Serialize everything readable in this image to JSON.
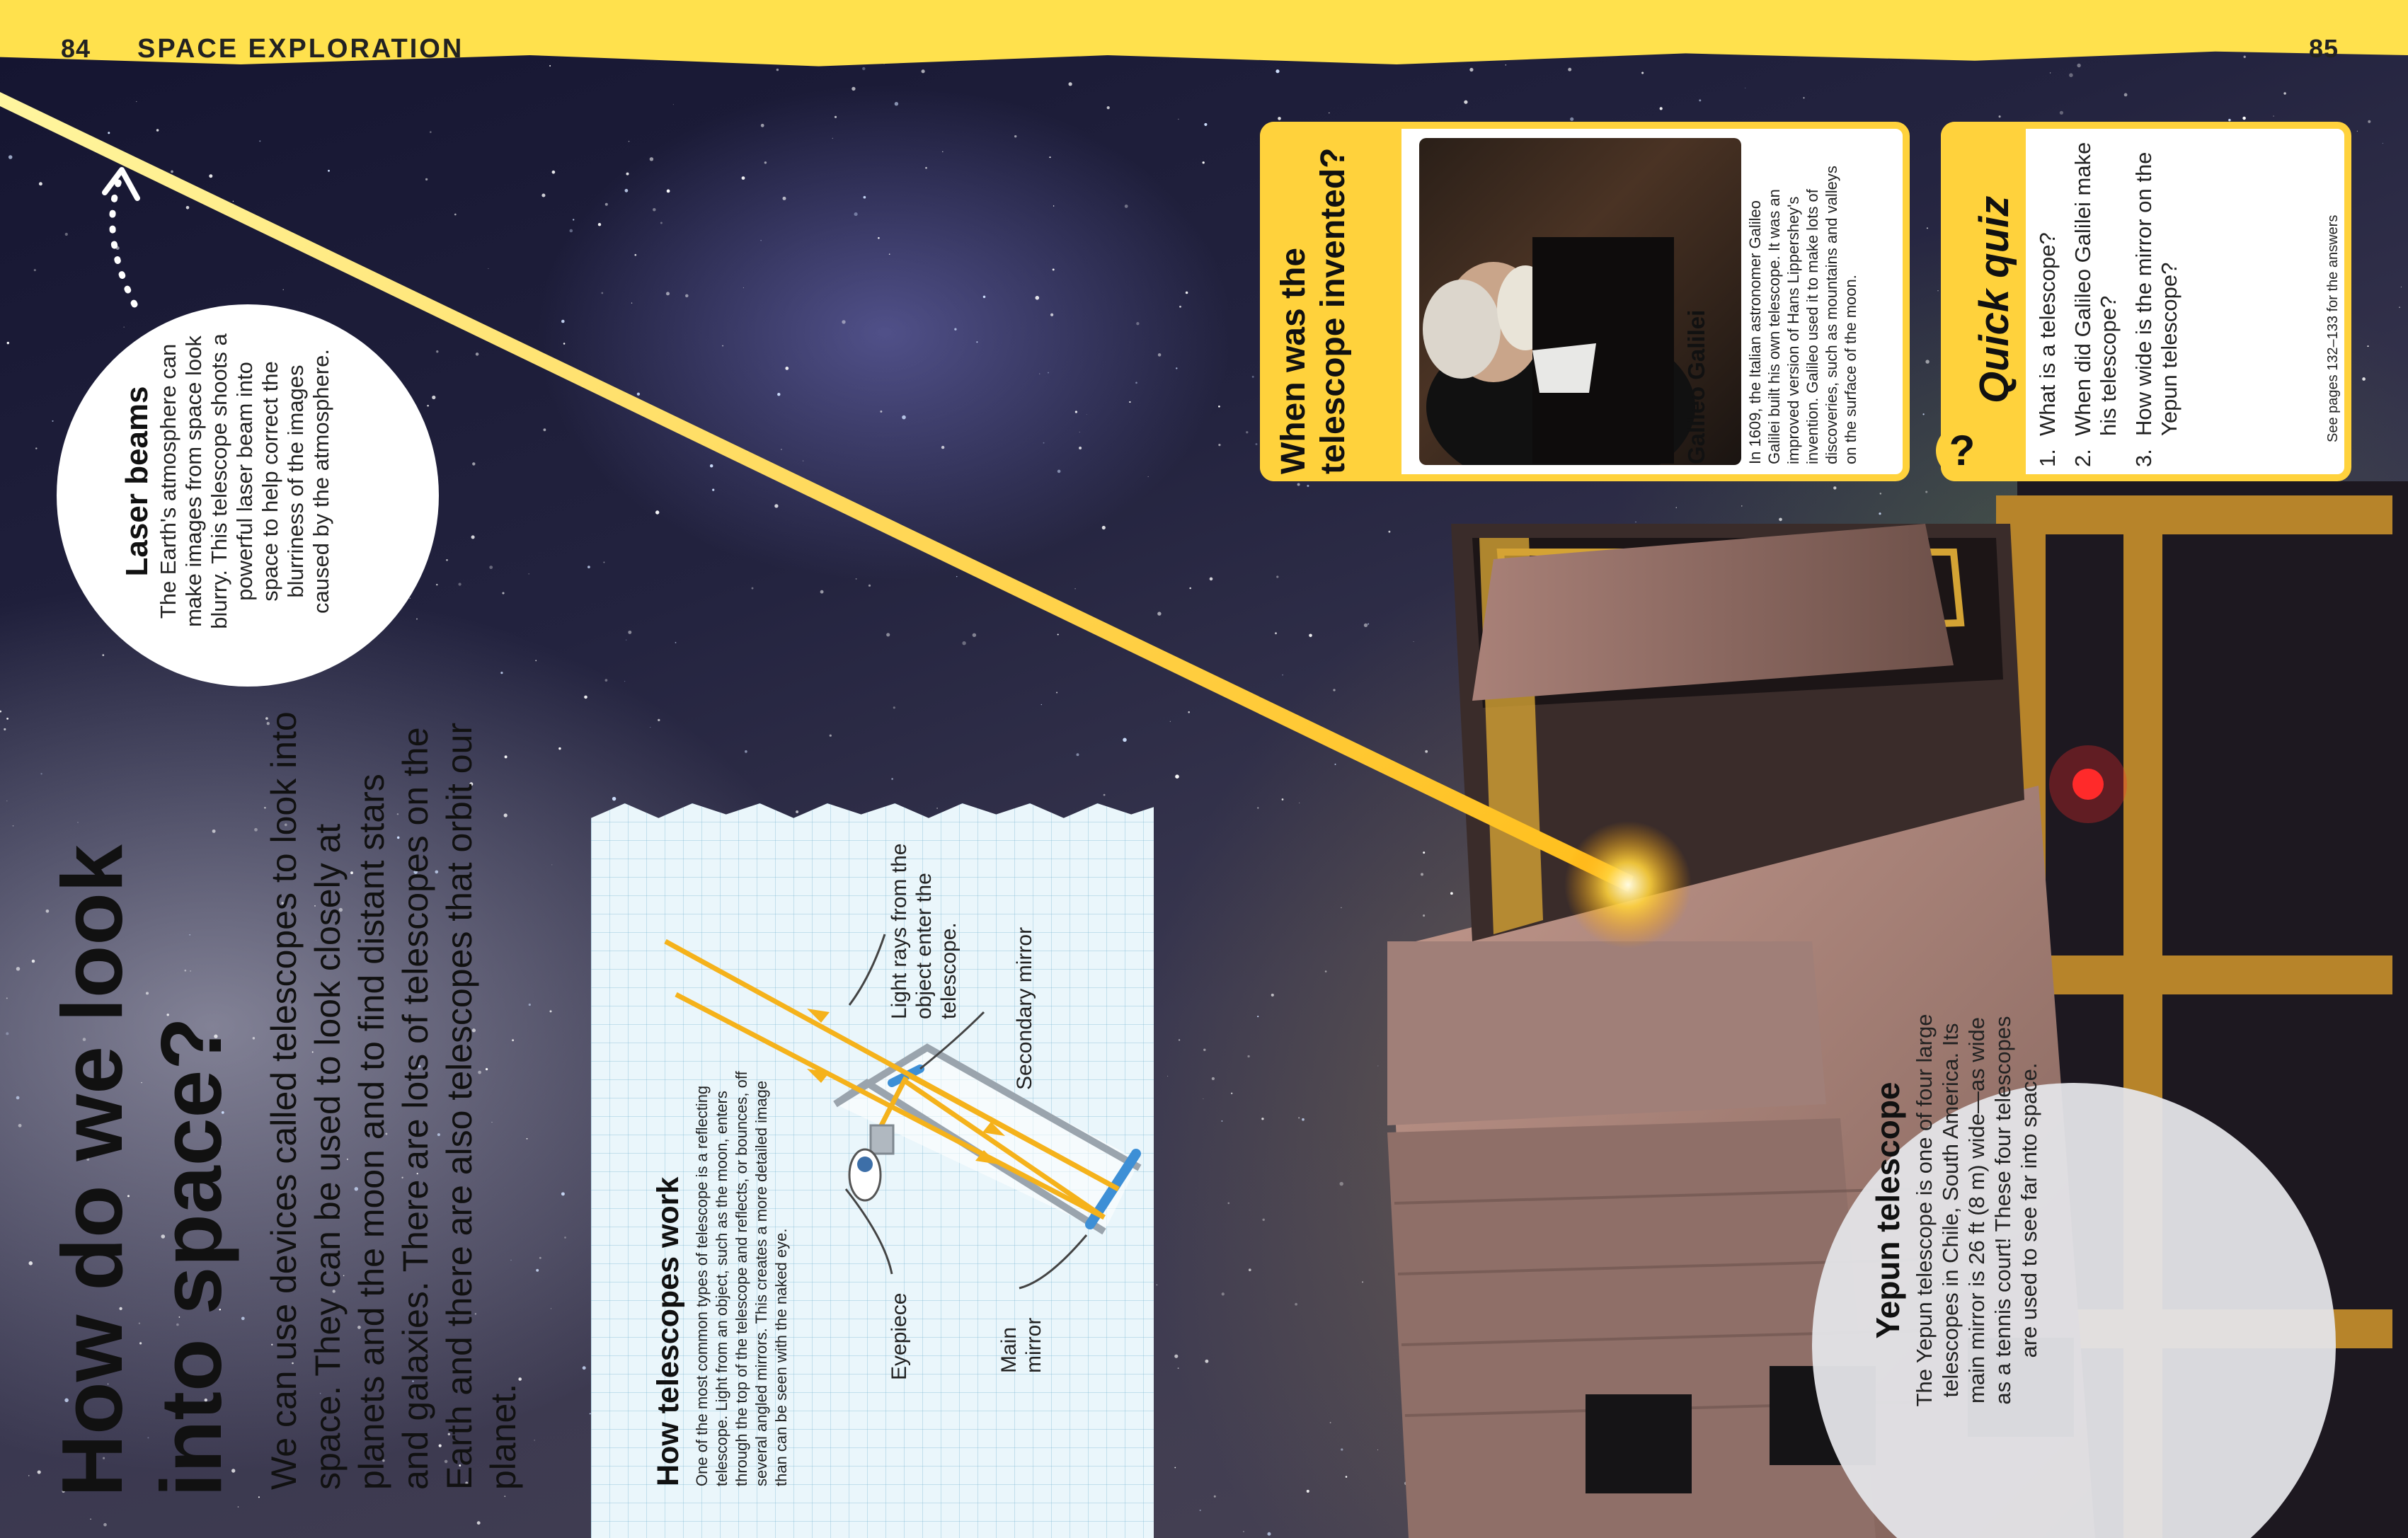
{
  "header": {
    "left_page_number": "84",
    "section_title": "SPACE EXPLORATION",
    "right_page_number": "85"
  },
  "main": {
    "title": "How do we look into space?",
    "intro": "We can use devices called telescopes to look into space. They can be used to look closely at planets and the moon and to find distant stars and galaxies. There are lots of telescopes on the Earth and there are also telescopes that orbit our planet."
  },
  "laser_beams": {
    "heading": "Laser beams",
    "text": "The Earth's atmosphere can make images from space look blurry. This telescope shoots a powerful laser beam into space to help correct the blurriness of the images caused by the atmosphere."
  },
  "how_telescopes_work": {
    "heading": "How telescopes work",
    "body": "One of the most common types of telescope is a reflecting telescope. Light from an object, such as the moon, enters through the top of the telescope and reflects, or bounces, off several angled mirrors. This creates a more detailed image than can be seen with the naked eye.",
    "labels": {
      "light_rays": "Light rays from the object enter the telescope.",
      "secondary_mirror": "Secondary mirror",
      "eyepiece": "Eyepiece",
      "main_mirror": "Main mirror"
    }
  },
  "galileo": {
    "question": "When was the telescope invented?",
    "name": "Galileo Galilei",
    "text": "In 1609, the Italian astronomer Galileo Galilei built his own telescope. It was an improved version of Hans Lippershey's invention. Galileo used it to make lots of discoveries, such as mountains and valleys on the surface of the moon."
  },
  "quiz": {
    "mark": "?",
    "title": "Quick quiz",
    "questions": [
      {
        "number": "1.",
        "text": "What is a telescope?"
      },
      {
        "number": "2.",
        "text": "When did Galileo Galilei make his telescope?"
      },
      {
        "number": "3.",
        "text": "How wide is the mirror on the Yepun telescope?"
      }
    ],
    "note": "See pages 132–133 for the answers"
  },
  "yepun": {
    "heading": "Yepun telescope",
    "text": "The Yepun telescope is one of four large telescopes in Chile, South America. Its main mirror is 26 ft (8 m) wide—as wide as a tennis court! These four telescopes are used to see far into space."
  },
  "colors": {
    "accent_yellow": "#ffd23c",
    "header_yellow": "#ffe14d",
    "laser": "#ffcc22"
  },
  "icons": [
    "dotted-arrow-icon",
    "eye-icon",
    "question-mark-icon"
  ]
}
